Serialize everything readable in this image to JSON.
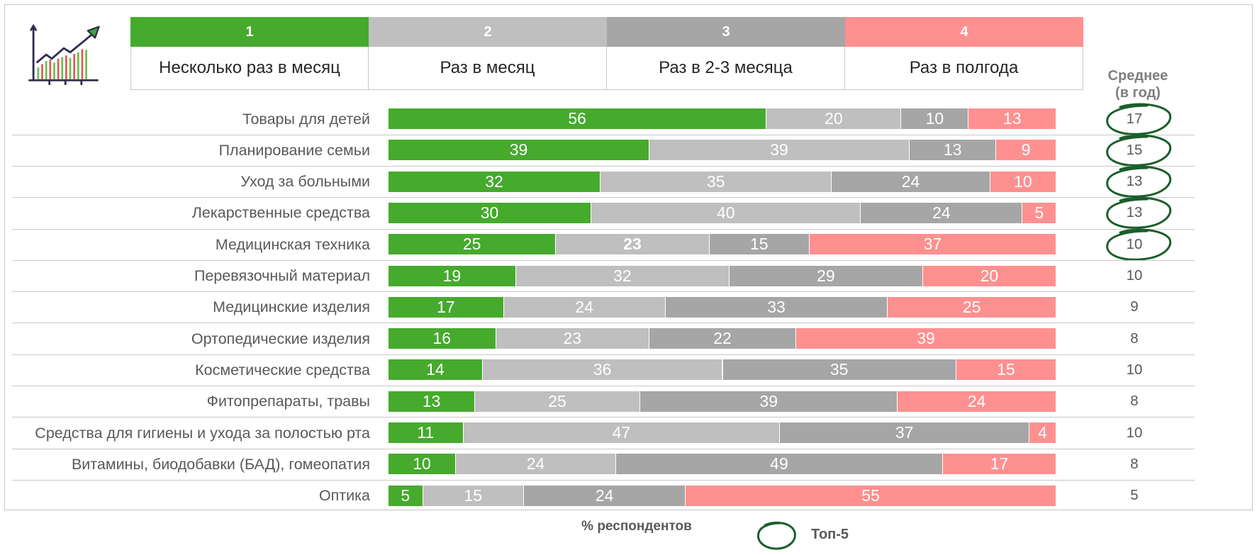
{
  "header_icon": "growth-chart-icon",
  "average_header": {
    "line1": "Среднее",
    "line2": "(в год)"
  },
  "footer": {
    "note": "% респондентов",
    "top5_label": "Топ-5"
  },
  "chart_data": {
    "type": "bar",
    "orientation": "horizontal",
    "stacked": true,
    "percent_stacked": true,
    "legend_placement": "top",
    "grid": false,
    "categories": [
      "Товары для детей",
      "Планирование семьи",
      "Уход за больными",
      "Лекарственные средства",
      "Медицинская техника",
      "Перевязочный материал",
      "Медицинские изделия",
      "Ортопедические изделия",
      "Косметические средства",
      "Фитопрепараты, травы",
      "Средства для гигиены и ухода за полостью рта",
      "Витамины, биодобавки (БАД), гомеопатия",
      "Оптика"
    ],
    "series": [
      {
        "code": "1",
        "name": "Несколько раз в месяц",
        "color": "#46AA2D",
        "values": [
          56,
          39,
          32,
          30,
          25,
          19,
          17,
          16,
          14,
          13,
          11,
          10,
          5
        ]
      },
      {
        "code": "2",
        "name": "Раз в месяц",
        "color": "#BFBFBF",
        "values": [
          20,
          39,
          35,
          40,
          23,
          32,
          24,
          23,
          36,
          25,
          47,
          24,
          15
        ]
      },
      {
        "code": "3",
        "name": "Раз в 2-3 месяца",
        "color": "#A6A6A6",
        "values": [
          10,
          13,
          24,
          24,
          15,
          29,
          33,
          22,
          35,
          39,
          37,
          49,
          24
        ]
      },
      {
        "code": "4",
        "name": "Раз в полгода",
        "color": "#FF9090",
        "values": [
          13,
          9,
          10,
          5,
          37,
          20,
          25,
          39,
          15,
          24,
          4,
          17,
          55
        ]
      }
    ],
    "emphasized_labels": [
      {
        "category_index": 4,
        "series_index": 1
      }
    ],
    "averages": {
      "values": [
        17,
        15,
        13,
        13,
        10,
        10,
        9,
        8,
        10,
        8,
        10,
        8,
        5
      ],
      "top5": [
        true,
        true,
        true,
        true,
        true,
        false,
        false,
        false,
        false,
        false,
        false,
        false,
        false
      ]
    },
    "top5_marker_color": "#1B5E2B"
  }
}
